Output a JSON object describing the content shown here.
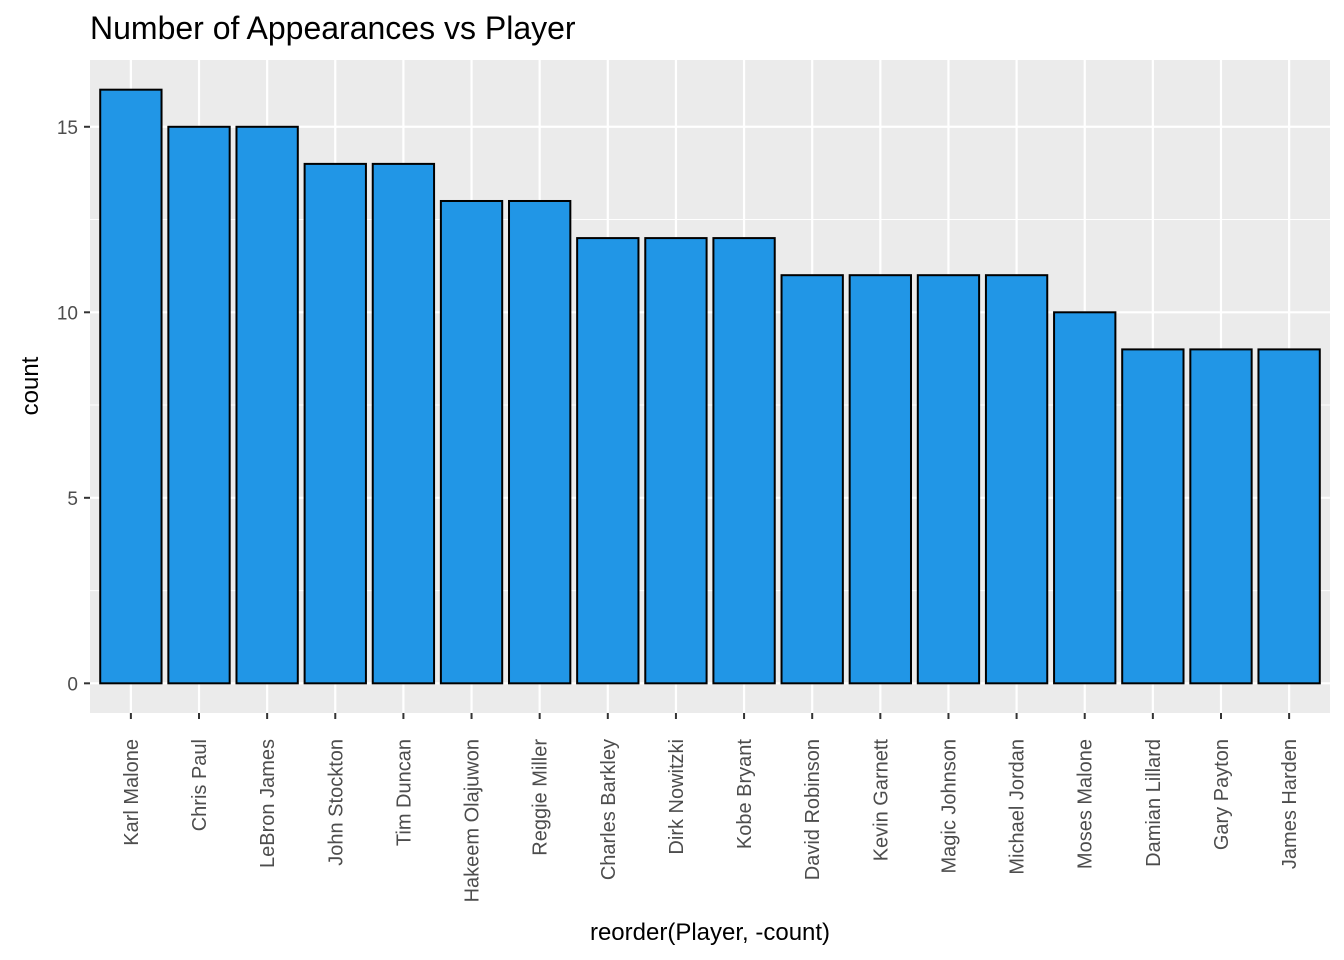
{
  "chart_data": {
    "type": "bar",
    "title": "Number of Appearances vs Player",
    "xlabel": "reorder(Player, -count)",
    "ylabel": "count",
    "categories": [
      "Karl Malone",
      "Chris Paul",
      "LeBron James",
      "John Stockton",
      "Tim Duncan",
      "Hakeem Olajuwon",
      "Reggie Miller",
      "Charles Barkley",
      "Dirk Nowitzki",
      "Kobe Bryant",
      "David Robinson",
      "Kevin Garnett",
      "Magic Johnson",
      "Michael Jordan",
      "Moses Malone",
      "Damian Lillard",
      "Gary Payton",
      "James Harden"
    ],
    "values": [
      16,
      15,
      15,
      14,
      14,
      13,
      13,
      12,
      12,
      12,
      11,
      11,
      11,
      11,
      10,
      9,
      9,
      9
    ],
    "yticks": [
      0,
      5,
      10,
      15
    ],
    "ylim": [
      -0.8,
      16.8
    ],
    "grid": true,
    "colors": {
      "bar_fill": "#2196E6",
      "bar_stroke": "#000000",
      "panel": "#EBEBEB",
      "grid": "#FFFFFF"
    }
  }
}
